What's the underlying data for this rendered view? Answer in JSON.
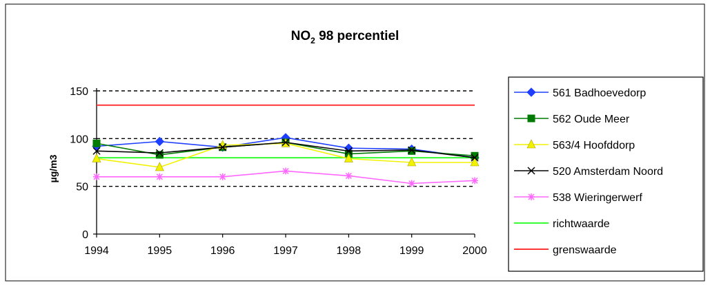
{
  "chart_data": {
    "type": "line",
    "title_main": "NO",
    "title_sub": "2",
    "title_rest": " 98 percentiel",
    "ylabel": "µg/m3",
    "xlabel": "",
    "x": [
      "1994",
      "1995",
      "1996",
      "1997",
      "1998",
      "1999",
      "2000"
    ],
    "ylim": [
      0,
      150
    ],
    "yticks": [
      "0",
      "50",
      "100",
      "150"
    ],
    "dashed_gridlines": [
      50,
      100,
      150
    ],
    "legend_placement": "right",
    "series": [
      {
        "name": "561 Badhoevedorp",
        "values": [
          92,
          97,
          91,
          101,
          90,
          89,
          80
        ],
        "color": "#1f3fff",
        "marker": "diamond"
      },
      {
        "name": "562 Oude Meer",
        "values": [
          95,
          83,
          91,
          96,
          84,
          87,
          82
        ],
        "color": "#007a00",
        "marker": "square"
      },
      {
        "name": "563/4 Hoofddorp",
        "values": [
          79,
          70,
          93,
          95,
          79,
          75,
          75
        ],
        "color": "#f2f200",
        "marker": "triangle"
      },
      {
        "name": "520 Amsterdam Noord",
        "values": [
          87,
          85,
          91,
          96,
          87,
          88,
          80
        ],
        "color": "#000000",
        "marker": "x"
      },
      {
        "name": "538 Wieringerwerf",
        "values": [
          60,
          60,
          60,
          66,
          61,
          53,
          56
        ],
        "color": "#ff66ff",
        "marker": "star"
      },
      {
        "name": "richtwaarde",
        "values": [
          80,
          80,
          80,
          80,
          80,
          80,
          80
        ],
        "color": "#33ff33",
        "marker": "none"
      },
      {
        "name": "grenswaarde",
        "values": [
          135,
          135,
          135,
          135,
          135,
          135,
          135
        ],
        "color": "#ff3333",
        "marker": "none"
      }
    ]
  }
}
